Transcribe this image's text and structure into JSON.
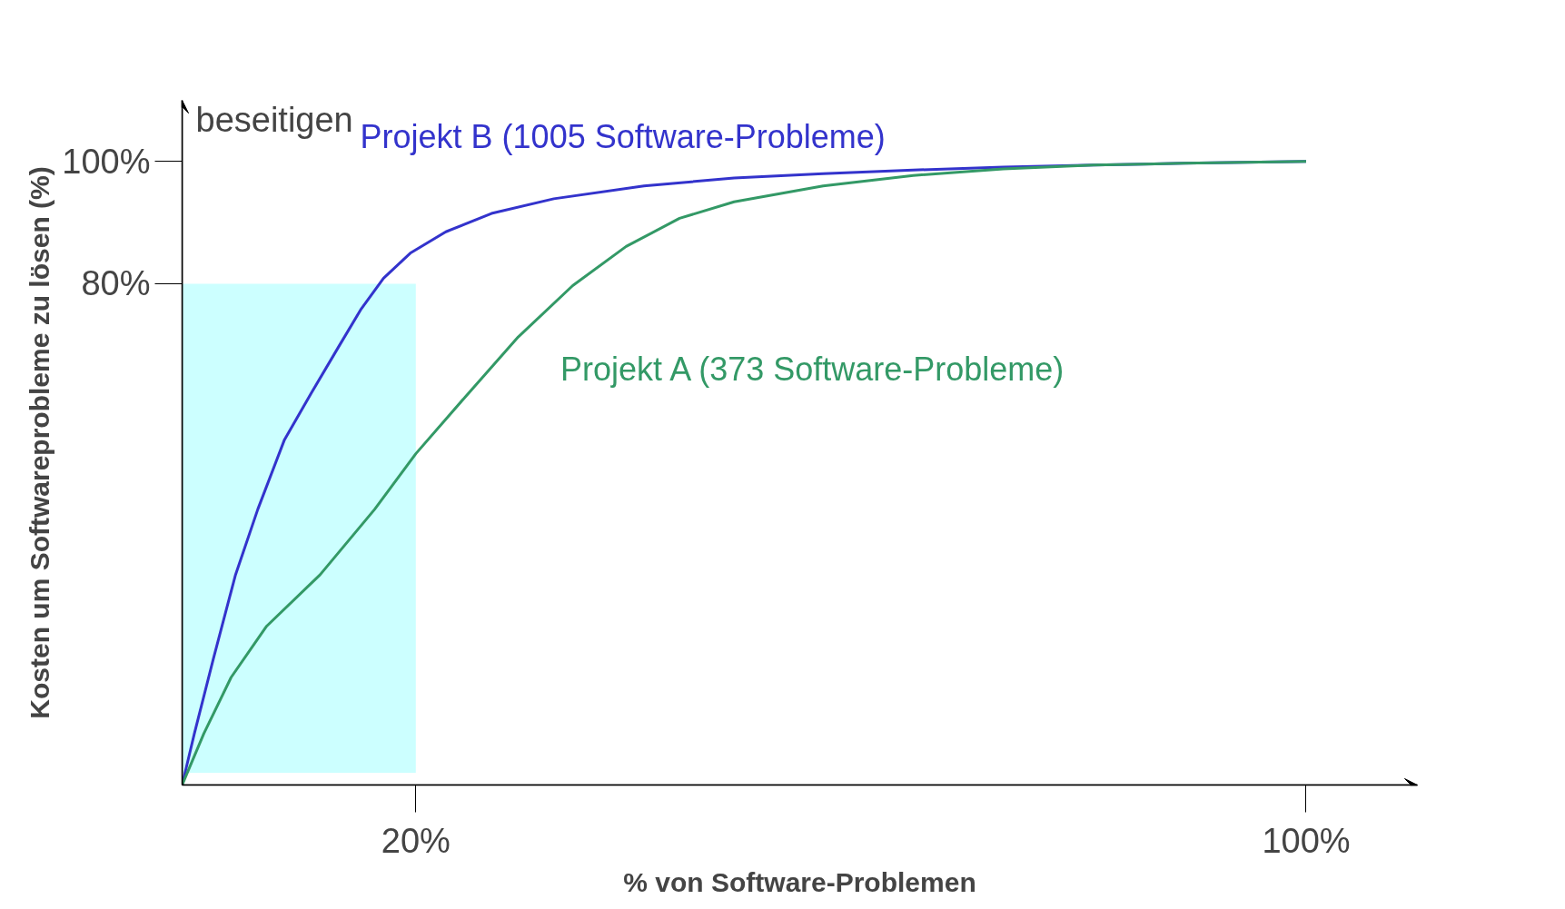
{
  "chart_data": {
    "type": "line",
    "xlabel": "% von Software-Problemen",
    "ylabel": "Kosten um Softwareprobleme zu lösen (%)",
    "annotations": [
      "beseitigen"
    ],
    "xlim": [
      -1,
      110
    ],
    "ylim": [
      -2,
      110
    ],
    "xticks": [
      {
        "value": 20,
        "label": "20%"
      },
      {
        "value": 100,
        "label": "100%"
      }
    ],
    "yticks": [
      {
        "value": 80,
        "label": "80%"
      },
      {
        "value": 100,
        "label": "100%"
      }
    ],
    "grid": false,
    "marker": "none",
    "line_style": "solid",
    "series": [
      {
        "type": "area",
        "color": "#ccffff",
        "x": [
          -1,
          20
        ],
        "values": [
          80,
          80
        ]
      },
      {
        "name": "Projekt B (1005 Software-Probleme)",
        "color": "#3333cc",
        "x": [
          -1,
          0.1,
          1.8,
          3.8,
          5.8,
          8.2,
          10.6,
          13.1,
          15.1,
          17.1,
          19.5,
          22.7,
          26.8,
          32.4,
          40.5,
          48.6,
          56.6,
          64.7,
          72.8,
          80.9,
          88.9,
          100
        ],
        "values": [
          -2,
          6.4,
          18.6,
          32.4,
          43.1,
          54.5,
          62.1,
          69.8,
          75.9,
          80.9,
          85.0,
          88.5,
          91.5,
          93.9,
          96.0,
          97.3,
          98.0,
          98.6,
          99.1,
          99.4,
          99.7,
          100
        ]
      },
      {
        "name": "Projekt A (373 Software-Probleme)",
        "color": "#339966",
        "x": [
          -1,
          0.95,
          3.4,
          6.6,
          11.4,
          16.3,
          20,
          24.4,
          29.2,
          34.1,
          38.9,
          43.7,
          48.6,
          56.6,
          64.7,
          72.8,
          80.9,
          88.9,
          100
        ],
        "values": [
          -2,
          6.4,
          15.6,
          24.0,
          32.4,
          43.1,
          52.2,
          61.4,
          71.3,
          79.7,
          86.1,
          90.7,
          93.4,
          96.0,
          97.7,
          98.8,
          99.4,
          99.7,
          100
        ]
      }
    ]
  }
}
